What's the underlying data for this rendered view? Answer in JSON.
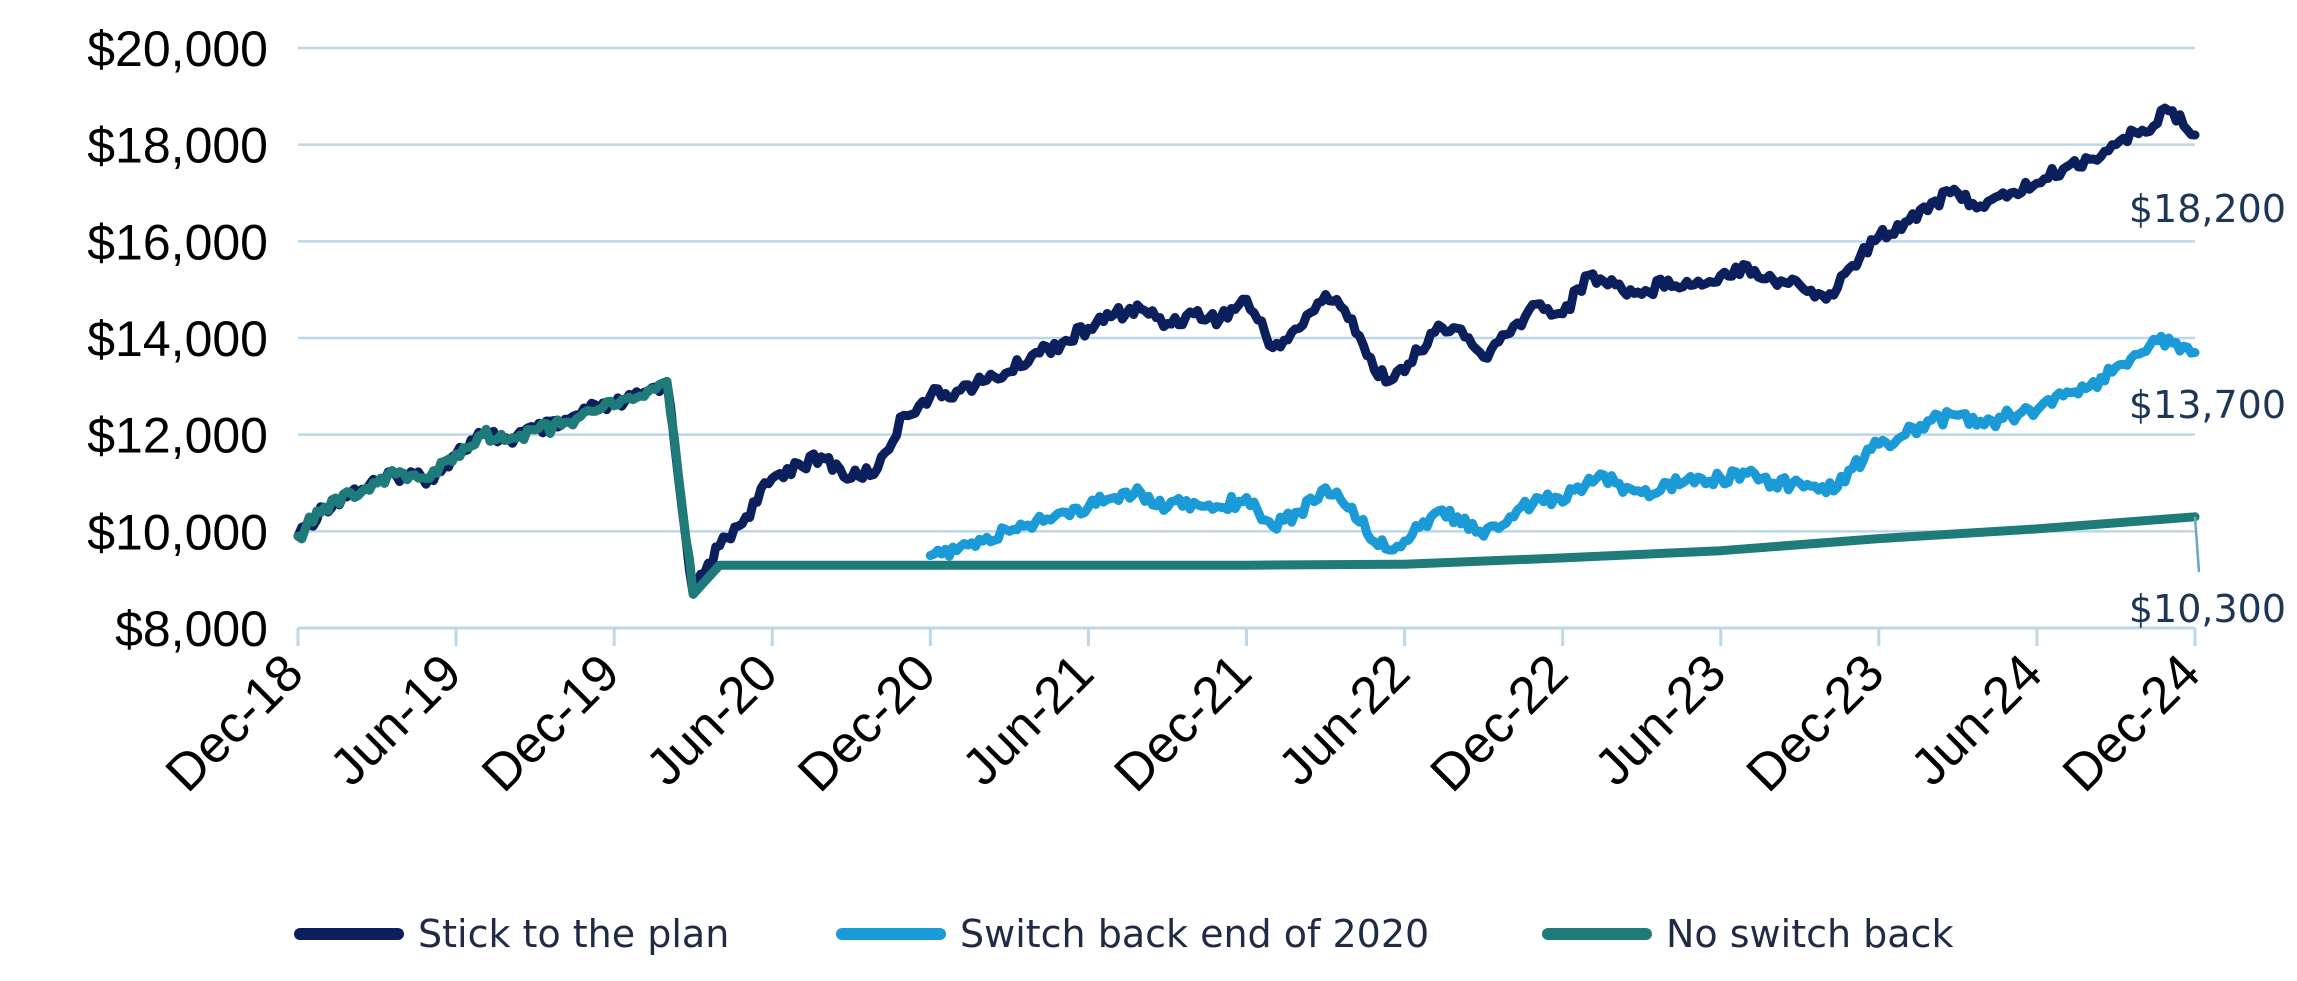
{
  "chart_data": {
    "type": "line",
    "title": "",
    "xlabel": "",
    "ylabel": "",
    "ylim": [
      8000,
      20000
    ],
    "y_ticks": [
      8000,
      10000,
      12000,
      14000,
      16000,
      18000,
      20000
    ],
    "y_tick_labels": [
      "$8,000",
      "$10,000",
      "$12,000",
      "$14,000",
      "$16,000",
      "$18,000",
      "$20,000"
    ],
    "x_tick_labels": [
      "Dec-18",
      "Jun-19",
      "Dec-19",
      "Jun-20",
      "Dec-20",
      "Jun-21",
      "Dec-21",
      "Jun-22",
      "Dec-22",
      "Jun-23",
      "Dec-23",
      "Jun-24",
      "Dec-24"
    ],
    "x_range": [
      "Dec-18",
      "Dec-24"
    ],
    "grid": "horizontal",
    "legend_position": "bottom",
    "series": [
      {
        "name": "Stick to the plan",
        "color": "#0b1f5c",
        "end_label": "$18,200",
        "points": [
          [
            "Dec-18",
            9900
          ],
          [
            "Jan-19",
            10500
          ],
          [
            "Feb-19",
            10800
          ],
          [
            "Mar-19",
            11000
          ],
          [
            "Apr-19",
            11200
          ],
          [
            "May-19",
            11100
          ],
          [
            "Jun-19",
            11600
          ],
          [
            "Jul-19",
            12000
          ],
          [
            "Aug-19",
            11900
          ],
          [
            "Sep-19",
            12100
          ],
          [
            "Oct-19",
            12200
          ],
          [
            "Nov-19",
            12500
          ],
          [
            "Dec-19",
            12600
          ],
          [
            "Jan-20",
            12800
          ],
          [
            "Feb-20",
            13100
          ],
          [
            "Mar-20",
            8700
          ],
          [
            "Apr-20",
            9700
          ],
          [
            "May-20",
            10300
          ],
          [
            "Jun-20",
            11100
          ],
          [
            "Jul-20",
            11400
          ],
          [
            "Aug-20",
            11500
          ],
          [
            "Sep-20",
            11100
          ],
          [
            "Oct-20",
            11300
          ],
          [
            "Nov-20",
            12400
          ],
          [
            "Dec-20",
            12800
          ],
          [
            "Jan-21",
            12900
          ],
          [
            "Feb-21",
            13100
          ],
          [
            "Mar-21",
            13300
          ],
          [
            "Apr-21",
            13700
          ],
          [
            "May-21",
            13900
          ],
          [
            "Jun-21",
            14200
          ],
          [
            "Jul-21",
            14500
          ],
          [
            "Aug-21",
            14600
          ],
          [
            "Sep-21",
            14300
          ],
          [
            "Oct-21",
            14500
          ],
          [
            "Nov-21",
            14400
          ],
          [
            "Dec-21",
            14800
          ],
          [
            "Jan-22",
            13800
          ],
          [
            "Feb-22",
            14200
          ],
          [
            "Mar-22",
            14900
          ],
          [
            "Apr-22",
            14400
          ],
          [
            "May-22",
            13200
          ],
          [
            "Jun-22",
            13300
          ],
          [
            "Jul-22",
            14100
          ],
          [
            "Aug-22",
            14200
          ],
          [
            "Sep-22",
            13600
          ],
          [
            "Oct-22",
            14100
          ],
          [
            "Nov-22",
            14700
          ],
          [
            "Dec-22",
            14500
          ],
          [
            "Jan-23",
            15300
          ],
          [
            "Feb-23",
            15100
          ],
          [
            "Mar-23",
            14900
          ],
          [
            "Apr-23",
            15200
          ],
          [
            "May-23",
            15100
          ],
          [
            "Jun-23",
            15300
          ],
          [
            "Jul-23",
            15500
          ],
          [
            "Aug-23",
            15200
          ],
          [
            "Sep-23",
            15100
          ],
          [
            "Oct-23",
            14800
          ],
          [
            "Nov-23",
            15500
          ],
          [
            "Dec-23",
            16100
          ],
          [
            "Jan-24",
            16400
          ],
          [
            "Feb-24",
            16800
          ],
          [
            "Mar-24",
            17000
          ],
          [
            "Apr-24",
            16700
          ],
          [
            "May-24",
            17000
          ],
          [
            "Jun-24",
            17200
          ],
          [
            "Jul-24",
            17500
          ],
          [
            "Aug-24",
            17700
          ],
          [
            "Sep-24",
            18000
          ],
          [
            "Oct-24",
            18300
          ],
          [
            "Nov-24",
            18700
          ],
          [
            "Dec-24",
            18200
          ]
        ]
      },
      {
        "name": "Switch back end of 2020",
        "color": "#1a9ad6",
        "end_label": "$13,700",
        "points": [
          [
            "Dec-20",
            9500
          ],
          [
            "Jan-21",
            9600
          ],
          [
            "Feb-21",
            9800
          ],
          [
            "Mar-21",
            10000
          ],
          [
            "Apr-21",
            10200
          ],
          [
            "May-21",
            10400
          ],
          [
            "Jun-21",
            10500
          ],
          [
            "Jul-21",
            10700
          ],
          [
            "Aug-21",
            10800
          ],
          [
            "Sep-21",
            10500
          ],
          [
            "Oct-21",
            10600
          ],
          [
            "Nov-21",
            10500
          ],
          [
            "Dec-21",
            10700
          ],
          [
            "Jan-22",
            10100
          ],
          [
            "Feb-22",
            10400
          ],
          [
            "Mar-22",
            10900
          ],
          [
            "Apr-22",
            10500
          ],
          [
            "May-22",
            9700
          ],
          [
            "Jun-22",
            9800
          ],
          [
            "Jul-22",
            10300
          ],
          [
            "Aug-22",
            10300
          ],
          [
            "Sep-22",
            9900
          ],
          [
            "Oct-22",
            10300
          ],
          [
            "Nov-22",
            10700
          ],
          [
            "Dec-22",
            10600
          ],
          [
            "Jan-23",
            11100
          ],
          [
            "Feb-23",
            11000
          ],
          [
            "Mar-23",
            10800
          ],
          [
            "Apr-23",
            11000
          ],
          [
            "May-23",
            11000
          ],
          [
            "Jun-23",
            11100
          ],
          [
            "Jul-23",
            11200
          ],
          [
            "Aug-23",
            11000
          ],
          [
            "Sep-23",
            11000
          ],
          [
            "Oct-23",
            10800
          ],
          [
            "Nov-23",
            11300
          ],
          [
            "Dec-23",
            11800
          ],
          [
            "Jan-24",
            12000
          ],
          [
            "Feb-24",
            12300
          ],
          [
            "Mar-24",
            12400
          ],
          [
            "Apr-24",
            12200
          ],
          [
            "May-24",
            12400
          ],
          [
            "Jun-24",
            12500
          ],
          [
            "Jul-24",
            12800
          ],
          [
            "Aug-24",
            13000
          ],
          [
            "Sep-24",
            13400
          ],
          [
            "Oct-24",
            13700
          ],
          [
            "Nov-24",
            14000
          ],
          [
            "Dec-24",
            13700
          ]
        ]
      },
      {
        "name": "No switch back",
        "color": "#1f7a7a",
        "end_label": "$10,300",
        "points": [
          [
            "Dec-18",
            9900
          ],
          [
            "Jan-19",
            10500
          ],
          [
            "Feb-19",
            10800
          ],
          [
            "Mar-19",
            11000
          ],
          [
            "Apr-19",
            11200
          ],
          [
            "May-19",
            11100
          ],
          [
            "Jun-19",
            11600
          ],
          [
            "Jul-19",
            12000
          ],
          [
            "Aug-19",
            11900
          ],
          [
            "Sep-19",
            12100
          ],
          [
            "Oct-19",
            12200
          ],
          [
            "Nov-19",
            12500
          ],
          [
            "Dec-19",
            12600
          ],
          [
            "Jan-20",
            12800
          ],
          [
            "Feb-20",
            13100
          ],
          [
            "Mar-20",
            8700
          ],
          [
            "Apr-20",
            9300
          ],
          [
            "Dec-20",
            9300
          ],
          [
            "Jun-21",
            9300
          ],
          [
            "Dec-21",
            9300
          ],
          [
            "Jun-22",
            9320
          ],
          [
            "Dec-22",
            9450
          ],
          [
            "Jun-23",
            9600
          ],
          [
            "Dec-23",
            9850
          ],
          [
            "Jun-24",
            10050
          ],
          [
            "Dec-24",
            10300
          ]
        ]
      }
    ]
  }
}
